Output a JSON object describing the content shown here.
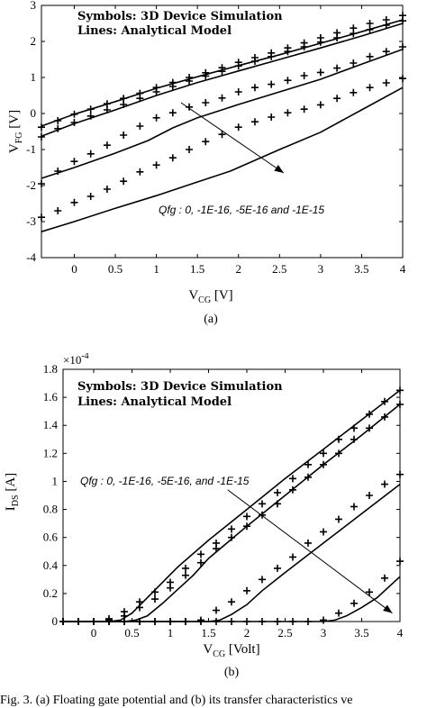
{
  "chart_data": [
    {
      "type": "line",
      "panel_label": "(a)",
      "xlabel_main": "V",
      "xlabel_sub": "CG",
      "xlabel_unit": "[V]",
      "ylabel_main": "V",
      "ylabel_sub": "FG",
      "ylabel_unit": "[V]",
      "xlim": [
        -0.4,
        4
      ],
      "ylim": [
        -4,
        3
      ],
      "xticks": [
        "0",
        "0.5",
        "1",
        "1.5",
        "2",
        "2.5",
        "3",
        "3.5",
        "4"
      ],
      "xtick_values": [
        0,
        0.5,
        1,
        1.5,
        2,
        2.5,
        3,
        3.5,
        4
      ],
      "yticks": [
        "-4",
        "-3",
        "-2",
        "-1",
        "0",
        "1",
        "2",
        "3"
      ],
      "ytick_values": [
        -4,
        -3,
        -2,
        -1,
        0,
        1,
        2,
        3
      ],
      "annotation_line1": "Symbols: 3D Device Simulation",
      "annotation_line2": "Lines: Analytical Model",
      "arrow_text": "Qfg : 0, -1E-16, -5E-16 and -1E-15",
      "arrow": {
        "from": [
          1.3,
          0.3
        ],
        "to": [
          2.55,
          -1.65
        ]
      },
      "lines": [
        {
          "x": [
            -0.4,
            0,
            0.5,
            1,
            1.5,
            2,
            2.5,
            3,
            3.5,
            4
          ],
          "y": [
            -0.35,
            -0.02,
            0.33,
            0.7,
            1.02,
            1.33,
            1.63,
            1.95,
            2.27,
            2.6
          ]
        },
        {
          "x": [
            -0.4,
            0,
            0.5,
            1,
            1.5,
            2,
            2.5,
            3,
            3.5,
            4
          ],
          "y": [
            -0.63,
            -0.28,
            0.1,
            0.5,
            0.86,
            1.18,
            1.5,
            1.82,
            2.15,
            2.5
          ]
        },
        {
          "x": [
            -0.4,
            0,
            0.5,
            0.9,
            1.2,
            1.5,
            2,
            2.5,
            3,
            3.5,
            4
          ],
          "y": [
            -1.8,
            -1.5,
            -1.1,
            -0.75,
            -0.4,
            -0.12,
            0.25,
            0.6,
            0.95,
            1.37,
            1.78
          ]
        },
        {
          "x": [
            -0.4,
            0,
            0.5,
            1,
            1.5,
            1.9,
            2.1,
            2.5,
            3,
            3.5,
            4
          ],
          "y": [
            -3.28,
            -3.0,
            -2.63,
            -2.28,
            -1.9,
            -1.6,
            -1.4,
            -1.0,
            -0.52,
            0.1,
            0.72
          ]
        }
      ],
      "series": [
        {
          "x": [
            -0.4,
            -0.2,
            0,
            0.2,
            0.4,
            0.6,
            0.8,
            1,
            1.2,
            1.4,
            1.6,
            1.8,
            2,
            2.2,
            2.4,
            2.6,
            2.8,
            3,
            3.2,
            3.4,
            3.6,
            3.8,
            4
          ],
          "y": [
            -0.38,
            -0.2,
            -0.02,
            0.12,
            0.27,
            0.42,
            0.56,
            0.72,
            0.86,
            1.0,
            1.13,
            1.27,
            1.42,
            1.55,
            1.68,
            1.82,
            1.96,
            2.1,
            2.24,
            2.37,
            2.5,
            2.6,
            2.72
          ]
        },
        {
          "x": [
            -0.4,
            -0.2,
            0,
            0.2,
            0.4,
            0.6,
            0.8,
            1,
            1.2,
            1.4,
            1.6,
            1.8,
            2,
            2.2,
            2.4,
            2.6,
            2.8,
            3,
            3.2,
            3.4,
            3.6,
            3.8,
            4
          ],
          "y": [
            -0.65,
            -0.42,
            -0.25,
            -0.07,
            0.1,
            0.25,
            0.42,
            0.6,
            0.75,
            0.9,
            1.04,
            1.17,
            1.32,
            1.45,
            1.58,
            1.72,
            1.85,
            1.98,
            2.1,
            2.22,
            2.33,
            2.45,
            2.57
          ]
        },
        {
          "x": [
            -0.4,
            -0.2,
            0,
            0.2,
            0.4,
            0.6,
            0.8,
            1,
            1.2,
            1.4,
            1.6,
            1.8,
            2,
            2.2,
            2.4,
            2.6,
            2.8,
            3,
            3.2,
            3.4,
            3.6,
            3.8,
            4
          ],
          "y": [
            -1.95,
            -1.6,
            -1.33,
            -1.12,
            -0.88,
            -0.6,
            -0.35,
            -0.12,
            0.02,
            0.18,
            0.3,
            0.43,
            0.6,
            0.72,
            0.81,
            0.92,
            1.05,
            1.14,
            1.26,
            1.4,
            1.58,
            1.72,
            1.85
          ]
        },
        {
          "x": [
            -0.4,
            -0.2,
            0,
            0.2,
            0.4,
            0.6,
            0.8,
            1,
            1.2,
            1.4,
            1.6,
            1.8,
            2,
            2.2,
            2.4,
            2.6,
            2.8,
            3,
            3.2,
            3.4,
            3.6,
            3.8,
            4
          ],
          "y": [
            -2.88,
            -2.7,
            -2.47,
            -2.3,
            -2.1,
            -1.88,
            -1.62,
            -1.43,
            -1.23,
            -1.0,
            -0.78,
            -0.58,
            -0.38,
            -0.23,
            -0.1,
            0.02,
            0.12,
            0.24,
            0.42,
            0.58,
            0.72,
            0.85,
            0.97
          ]
        }
      ]
    },
    {
      "type": "line",
      "panel_label": "(b)",
      "xlabel_main": "V",
      "xlabel_sub": "CG",
      "xlabel_unit": "[Volt]",
      "ylabel_main": "I",
      "ylabel_sub": "DS",
      "ylabel_unit": "[A]",
      "multiplier_base": "×10",
      "multiplier_exp": "-4",
      "xlim": [
        -0.4,
        4
      ],
      "ylim": [
        0,
        1.8
      ],
      "xticks": [
        "0",
        "0.5",
        "1",
        "1.5",
        "2",
        "2.5",
        "3",
        "3.5",
        "4"
      ],
      "xtick_values": [
        0,
        0.5,
        1,
        1.5,
        2,
        2.5,
        3,
        3.5,
        4
      ],
      "yticks": [
        "0",
        "0.2",
        "0.4",
        "0.6",
        "0.8",
        "1",
        "1.2",
        "1.4",
        "1.6",
        "1.8"
      ],
      "ytick_values": [
        0,
        0.2,
        0.4,
        0.6,
        0.8,
        1,
        1.2,
        1.4,
        1.6,
        1.8
      ],
      "annotation_line1": "Symbols: 3D Device Simulation",
      "annotation_line2": "Lines: Analytical Model",
      "arrow_text": "Qfg : 0, -1E-16, -5E-16, and -1E-15",
      "arrow": {
        "from": [
          1.75,
          0.94
        ],
        "to": [
          3.9,
          0.06
        ]
      },
      "lines": [
        {
          "x": [
            -0.4,
            0.2,
            0.35,
            0.5,
            0.7,
            0.9,
            1.1,
            1.5,
            2,
            2.5,
            3,
            3.5,
            4
          ],
          "y": [
            0,
            0,
            0.01,
            0.06,
            0.17,
            0.28,
            0.39,
            0.58,
            0.8,
            1.02,
            1.23,
            1.44,
            1.65
          ]
        },
        {
          "x": [
            -0.4,
            0.4,
            0.55,
            0.7,
            0.9,
            1.1,
            1.3,
            1.5,
            2,
            2.5,
            3,
            3.5,
            4
          ],
          "y": [
            0,
            0,
            0.01,
            0.04,
            0.13,
            0.23,
            0.33,
            0.45,
            0.68,
            0.9,
            1.12,
            1.33,
            1.55
          ]
        },
        {
          "x": [
            -0.4,
            1.5,
            1.65,
            1.8,
            2.0,
            2.2,
            2.5,
            3,
            3.5,
            4
          ],
          "y": [
            0,
            0,
            0.01,
            0.05,
            0.12,
            0.22,
            0.35,
            0.56,
            0.77,
            0.98
          ]
        },
        {
          "x": [
            -0.4,
            3.0,
            3.15,
            3.3,
            3.5,
            3.7,
            4
          ],
          "y": [
            0,
            0,
            0.01,
            0.04,
            0.1,
            0.17,
            0.32
          ]
        }
      ],
      "series": [
        {
          "x": [
            -0.4,
            -0.2,
            0,
            0.2,
            0.4,
            0.6,
            0.8,
            1,
            1.2,
            1.4,
            1.6,
            1.8,
            2,
            2.2,
            2.4,
            2.6,
            2.8,
            3,
            3.2,
            3.4,
            3.6,
            3.8,
            4
          ],
          "y": [
            0,
            0,
            0,
            0.02,
            0.07,
            0.14,
            0.21,
            0.28,
            0.38,
            0.48,
            0.56,
            0.66,
            0.75,
            0.84,
            0.92,
            1.02,
            1.12,
            1.2,
            1.3,
            1.38,
            1.48,
            1.57,
            1.65
          ]
        },
        {
          "x": [
            -0.4,
            -0.2,
            0,
            0.2,
            0.4,
            0.6,
            0.8,
            1,
            1.2,
            1.4,
            1.6,
            1.8,
            2,
            2.2,
            2.4,
            2.6,
            2.8,
            3,
            3.2,
            3.4,
            3.6,
            3.8,
            4
          ],
          "y": [
            0,
            0,
            0,
            0.01,
            0.04,
            0.1,
            0.16,
            0.24,
            0.33,
            0.42,
            0.52,
            0.6,
            0.68,
            0.76,
            0.84,
            0.94,
            1.03,
            1.12,
            1.2,
            1.3,
            1.38,
            1.46,
            1.55
          ]
        },
        {
          "x": [
            -0.4,
            -0.2,
            0,
            0.2,
            0.4,
            0.6,
            0.8,
            1,
            1.2,
            1.4,
            1.6,
            1.8,
            2,
            2.2,
            2.4,
            2.6,
            2.8,
            3,
            3.2,
            3.4,
            3.6,
            3.8,
            4
          ],
          "y": [
            0,
            0,
            0,
            0,
            0,
            0,
            0,
            0,
            0,
            0.01,
            0.08,
            0.14,
            0.22,
            0.3,
            0.38,
            0.46,
            0.56,
            0.64,
            0.73,
            0.82,
            0.9,
            0.98,
            1.05
          ]
        },
        {
          "x": [
            -0.4,
            -0.2,
            0,
            0.2,
            0.4,
            0.6,
            0.8,
            1,
            1.2,
            1.4,
            1.6,
            1.8,
            2,
            2.2,
            2.4,
            2.6,
            2.8,
            3,
            3.2,
            3.4,
            3.6,
            3.8,
            4
          ],
          "y": [
            0,
            0,
            0,
            0,
            0,
            0,
            0,
            0,
            0,
            0,
            0,
            0,
            0,
            0,
            0,
            0,
            0,
            0.01,
            0.06,
            0.13,
            0.21,
            0.31,
            0.43
          ]
        }
      ]
    }
  ],
  "caption": "Fig. 3.  (a) Floating gate potential and (b) its transfer characteristics ve"
}
